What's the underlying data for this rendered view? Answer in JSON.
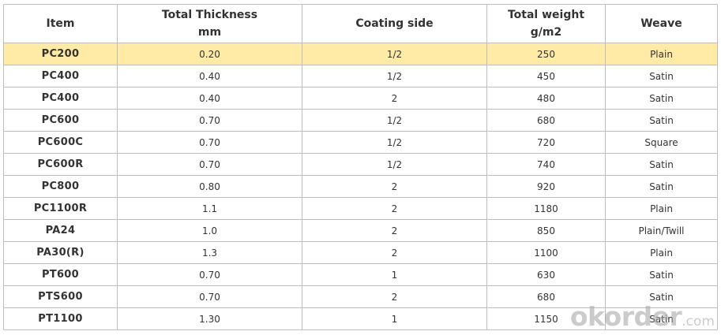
{
  "colors": {
    "highlight_row": "#ffeaa6",
    "border": "#bdbdbd",
    "text": "#333333"
  },
  "table": {
    "headers": [
      {
        "line1": "Item",
        "line2": ""
      },
      {
        "line1": "Total Thickness",
        "line2": "mm"
      },
      {
        "line1": "Coating side",
        "line2": ""
      },
      {
        "line1": "Total weight",
        "line2": "g/m2"
      },
      {
        "line1": "Weave",
        "line2": ""
      }
    ],
    "rows": [
      {
        "item": "PC200",
        "thickness": "0.20",
        "coating": "1/2",
        "weight": "250",
        "weave": "Plain"
      },
      {
        "item": "PC400",
        "thickness": "0.40",
        "coating": "1/2",
        "weight": "450",
        "weave": "Satin"
      },
      {
        "item": "PC400",
        "thickness": "0.40",
        "coating": "2",
        "weight": "480",
        "weave": "Satin"
      },
      {
        "item": "PC600",
        "thickness": "0.70",
        "coating": "1/2",
        "weight": "680",
        "weave": "Satin"
      },
      {
        "item": "PC600C",
        "thickness": "0.70",
        "coating": "1/2",
        "weight": "720",
        "weave": "Square"
      },
      {
        "item": "PC600R",
        "thickness": "0.70",
        "coating": "1/2",
        "weight": "740",
        "weave": "Satin"
      },
      {
        "item": "PC800",
        "thickness": "0.80",
        "coating": "2",
        "weight": "920",
        "weave": "Satin"
      },
      {
        "item": "PC1100R",
        "thickness": "1.1",
        "coating": "2",
        "weight": "1180",
        "weave": "Plain"
      },
      {
        "item": "PA24",
        "thickness": "1.0",
        "coating": "2",
        "weight": "850",
        "weave": "Plain/Twill"
      },
      {
        "item": "PA30(R)",
        "thickness": "1.3",
        "coating": "2",
        "weight": "1100",
        "weave": "Plain"
      },
      {
        "item": "PT600",
        "thickness": "0.70",
        "coating": "1",
        "weight": "630",
        "weave": "Satin"
      },
      {
        "item": "PTS600",
        "thickness": "0.70",
        "coating": "2",
        "weight": "680",
        "weave": "Satin"
      },
      {
        "item": "PT1100",
        "thickness": "1.30",
        "coating": "1",
        "weight": "1150",
        "weave": "Satin"
      }
    ]
  },
  "watermark": {
    "main": "okorder",
    "suffix": ".com"
  }
}
